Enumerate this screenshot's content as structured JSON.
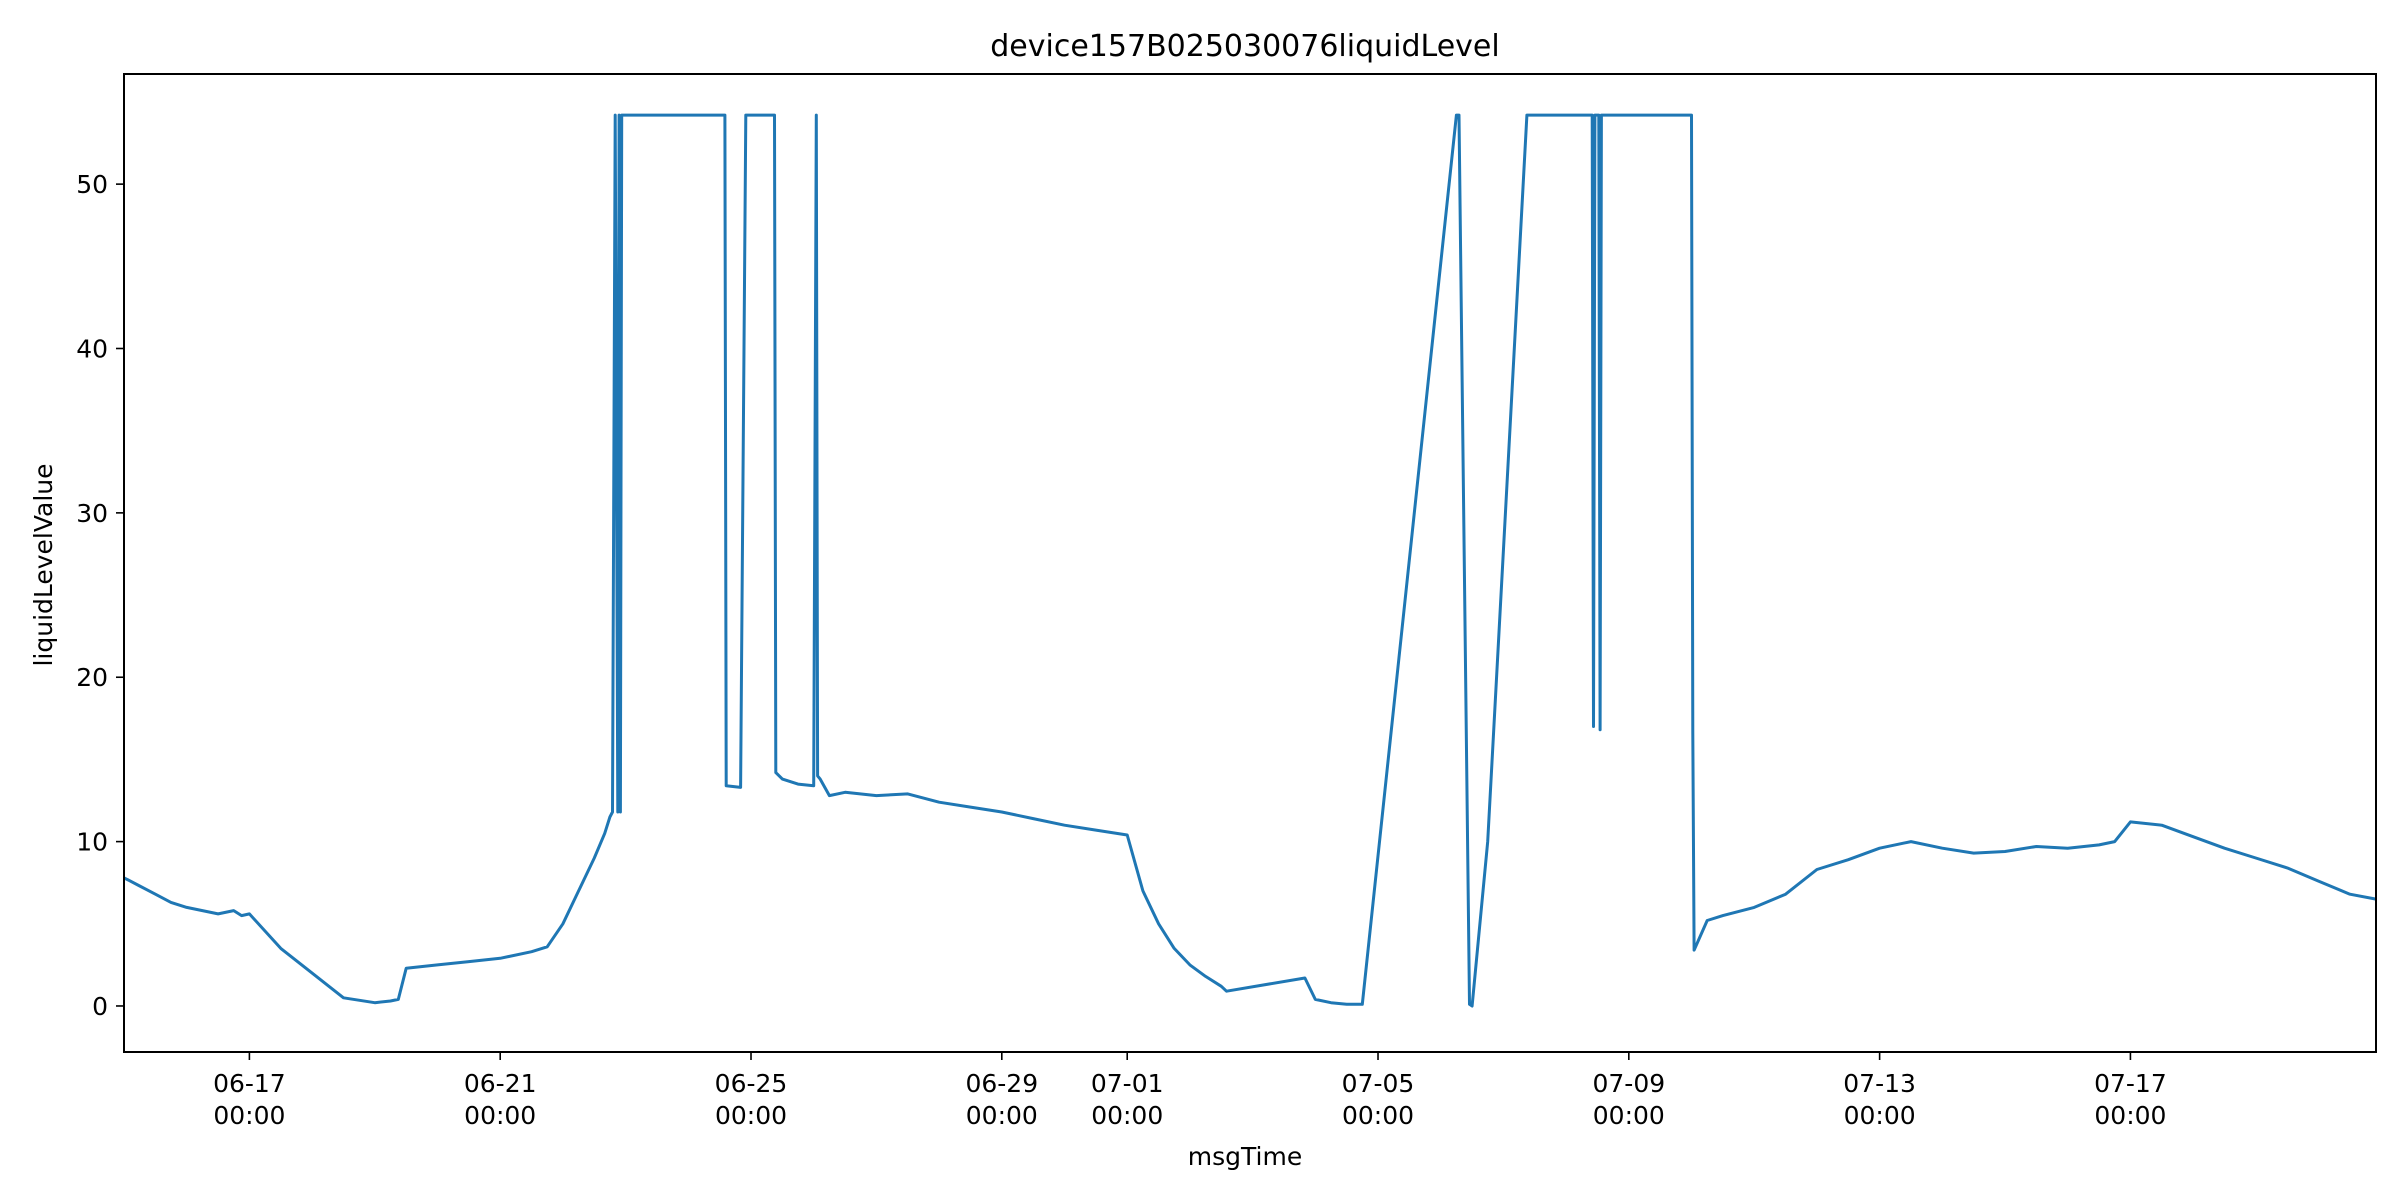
{
  "chart_data": {
    "type": "line",
    "title": "device157B025030076liquidLevel",
    "xlabel": "msgTime",
    "ylabel": "liquidLevelValue",
    "xlim": [
      "2025-06-15T00:00",
      "2025-07-20T22:00"
    ],
    "ylim": [
      -2.8,
      56.7
    ],
    "x_ticks": [
      {
        "date": "2025-06-17T00:00",
        "label": [
          "06-17",
          "00:00"
        ]
      },
      {
        "date": "2025-06-21T00:00",
        "label": [
          "06-21",
          "00:00"
        ]
      },
      {
        "date": "2025-06-25T00:00",
        "label": [
          "06-25",
          "00:00"
        ]
      },
      {
        "date": "2025-06-29T00:00",
        "label": [
          "06-29",
          "00:00"
        ]
      },
      {
        "date": "2025-07-01T00:00",
        "label": [
          "07-01",
          "00:00"
        ]
      },
      {
        "date": "2025-07-05T00:00",
        "label": [
          "07-05",
          "00:00"
        ]
      },
      {
        "date": "2025-07-09T00:00",
        "label": [
          "07-09",
          "00:00"
        ]
      },
      {
        "date": "2025-07-13T00:00",
        "label": [
          "07-13",
          "00:00"
        ]
      },
      {
        "date": "2025-07-17T00:00",
        "label": [
          "07-17",
          "00:00"
        ]
      }
    ],
    "y_ticks": [
      0,
      10,
      20,
      30,
      40,
      50
    ],
    "grid": false,
    "series": [
      {
        "color": "#1f77b4",
        "x": [
          "2025-06-15T00:00",
          "2025-06-15T06:00",
          "2025-06-15T12:00",
          "2025-06-15T18:00",
          "2025-06-16T00:00",
          "2025-06-16T06:00",
          "2025-06-16T12:00",
          "2025-06-16T18:00",
          "2025-06-16T21:00",
          "2025-06-17T00:00",
          "2025-06-17T12:00",
          "2025-06-18T00:00",
          "2025-06-18T12:00",
          "2025-06-19T00:00",
          "2025-06-19T06:00",
          "2025-06-19T09:00",
          "2025-06-19T12:00",
          "2025-06-20T00:00",
          "2025-06-20T12:00",
          "2025-06-21T00:00",
          "2025-06-21T12:00",
          "2025-06-21T18:00",
          "2025-06-22T00:00",
          "2025-06-22T06:00",
          "2025-06-22T12:00",
          "2025-06-22T16:00",
          "2025-06-22T18:00",
          "2025-06-22T19:00",
          "2025-06-22T20:00",
          "2025-06-22T21:00",
          "2025-06-22T21:30",
          "2025-06-22T22:00",
          "2025-06-22T22:30",
          "2025-06-24T14:00",
          "2025-06-24T14:30",
          "2025-06-24T20:00",
          "2025-06-24T22:00",
          "2025-06-25T09:00",
          "2025-06-25T09:30",
          "2025-06-25T12:00",
          "2025-06-25T18:00",
          "2025-06-26T00:00",
          "2025-06-26T01:00",
          "2025-06-26T01:30",
          "2025-06-26T02:30",
          "2025-06-26T06:00",
          "2025-06-26T12:00",
          "2025-06-27T00:00",
          "2025-06-27T12:00",
          "2025-06-28T00:00",
          "2025-06-28T12:00",
          "2025-06-29T00:00",
          "2025-06-29T12:00",
          "2025-06-30T00:00",
          "2025-06-30T12:00",
          "2025-07-01T00:00",
          "2025-07-01T06:00",
          "2025-07-01T12:00",
          "2025-07-01T18:00",
          "2025-07-02T00:00",
          "2025-07-02T06:00",
          "2025-07-02T12:00",
          "2025-07-02T14:00",
          "2025-07-03T20:00",
          "2025-07-04T00:00",
          "2025-07-04T06:00",
          "2025-07-04T12:00",
          "2025-07-04T18:00",
          "2025-07-06T06:00",
          "2025-07-06T07:00",
          "2025-07-06T11:00",
          "2025-07-06T12:00",
          "2025-07-06T18:00",
          "2025-07-07T09:00",
          "2025-07-08T10:00",
          "2025-07-08T10:30",
          "2025-07-08T11:00",
          "2025-07-08T12:30",
          "2025-07-08T13:00",
          "2025-07-08T13:30",
          "2025-07-10T00:00",
          "2025-07-10T00:30",
          "2025-07-10T01:00",
          "2025-07-10T06:00",
          "2025-07-10T12:00",
          "2025-07-11T00:00",
          "2025-07-11T12:00",
          "2025-07-12T00:00",
          "2025-07-12T12:00",
          "2025-07-13T00:00",
          "2025-07-13T12:00",
          "2025-07-14T00:00",
          "2025-07-14T12:00",
          "2025-07-15T00:00",
          "2025-07-15T12:00",
          "2025-07-16T00:00",
          "2025-07-16T12:00",
          "2025-07-16T18:00",
          "2025-07-17T00:00",
          "2025-07-17T12:00",
          "2025-07-18T00:00",
          "2025-07-18T12:00",
          "2025-07-19T00:00",
          "2025-07-19T12:00",
          "2025-07-20T00:00",
          "2025-07-20T12:00",
          "2025-07-20T22:00"
        ],
        "y": [
          7.8,
          7.3,
          6.8,
          6.3,
          6.0,
          5.8,
          5.6,
          5.8,
          5.5,
          5.6,
          3.5,
          2.0,
          0.5,
          0.2,
          0.3,
          0.4,
          2.3,
          2.5,
          2.7,
          2.9,
          3.3,
          3.6,
          5.0,
          7.0,
          9.0,
          10.5,
          11.5,
          11.8,
          54.2,
          11.8,
          54.2,
          11.8,
          54.2,
          54.2,
          13.4,
          13.3,
          54.2,
          54.2,
          14.2,
          13.8,
          13.5,
          13.4,
          54.2,
          14.0,
          13.8,
          12.8,
          13.0,
          12.8,
          12.9,
          12.4,
          12.1,
          11.8,
          11.4,
          11.0,
          10.7,
          10.4,
          7.0,
          5.0,
          3.5,
          2.5,
          1.8,
          1.2,
          0.9,
          1.7,
          0.4,
          0.2,
          0.1,
          0.1,
          54.2,
          54.2,
          0.1,
          0.0,
          10.0,
          54.2,
          54.2,
          17.0,
          54.2,
          54.2,
          16.8,
          54.2,
          54.2,
          16.6,
          3.4,
          5.2,
          5.5,
          6.0,
          6.8,
          8.3,
          8.9,
          9.6,
          10.0,
          9.6,
          9.3,
          9.4,
          9.7,
          9.6,
          9.8,
          10.0,
          11.2,
          11.0,
          10.3,
          9.6,
          9.0,
          8.4,
          7.6,
          6.8,
          6.5
        ]
      }
    ]
  }
}
